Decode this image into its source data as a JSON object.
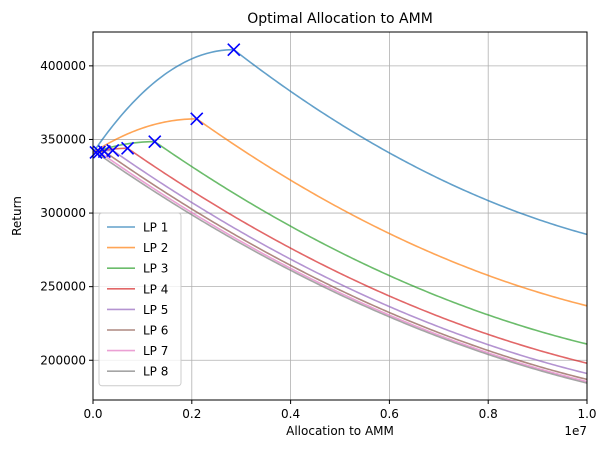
{
  "chart_data": {
    "type": "line",
    "title": "Optimal Allocation to AMM",
    "xlabel": "Allocation to AMM",
    "ylabel": "Return",
    "x_offset_label": "1e7",
    "xlim": [
      0,
      10000000
    ],
    "ylim": [
      173000,
      423000
    ],
    "grid": true,
    "legend_position": "lower-left",
    "x_ticks": [
      {
        "value": 0,
        "label": "0.0"
      },
      {
        "value": 2000000,
        "label": "0.2"
      },
      {
        "value": 4000000,
        "label": "0.4"
      },
      {
        "value": 6000000,
        "label": "0.6"
      },
      {
        "value": 8000000,
        "label": "0.8"
      },
      {
        "value": 10000000,
        "label": "1.0"
      }
    ],
    "y_ticks": [
      {
        "value": 200000,
        "label": "200000"
      },
      {
        "value": 250000,
        "label": "250000"
      },
      {
        "value": 300000,
        "label": "300000"
      },
      {
        "value": 350000,
        "label": "350000"
      },
      {
        "value": 400000,
        "label": "400000"
      }
    ],
    "series": [
      {
        "name": "LP 1",
        "color": "#1f77b4",
        "y0": 341000,
        "opt_x": 2850000,
        "opt_y": 411000,
        "y_end": 285500
      },
      {
        "name": "LP 2",
        "color": "#ff7f0e",
        "y0": 341000,
        "opt_x": 2100000,
        "opt_y": 364000,
        "y_end": 237000
      },
      {
        "name": "LP 3",
        "color": "#2ca02c",
        "y0": 341000,
        "opt_x": 1250000,
        "opt_y": 348500,
        "y_end": 211000
      },
      {
        "name": "LP 4",
        "color": "#d62728",
        "y0": 341000,
        "opt_x": 700000,
        "opt_y": 344000,
        "y_end": 198000
      },
      {
        "name": "LP 5",
        "color": "#9467bd",
        "y0": 341000,
        "opt_x": 400000,
        "opt_y": 342500,
        "y_end": 191000
      },
      {
        "name": "LP 6",
        "color": "#8c564b",
        "y0": 341000,
        "opt_x": 230000,
        "opt_y": 341800,
        "y_end": 187000
      },
      {
        "name": "LP 7",
        "color": "#e377c2",
        "y0": 341000,
        "opt_x": 130000,
        "opt_y": 341400,
        "y_end": 185500
      },
      {
        "name": "LP 8",
        "color": "#7f7f7f",
        "y0": 341000,
        "opt_x": 60000,
        "opt_y": 341200,
        "y_end": 184500
      }
    ],
    "marker": {
      "symbol": "x",
      "color": "#0000ff"
    }
  }
}
